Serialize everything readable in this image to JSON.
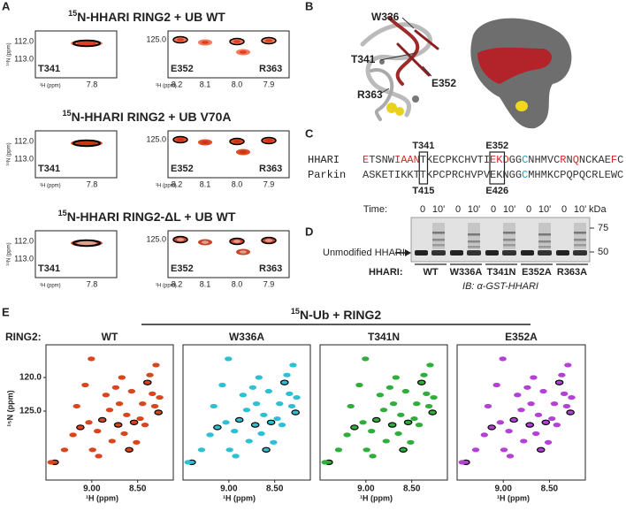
{
  "panel_a": {
    "label": "A",
    "rows": [
      {
        "title_sup": "15",
        "title": "N-HHARI RING2 + UB WT",
        "left": {
          "yticks": [
            "112.0",
            "113.0"
          ],
          "ylabel": "¹⁵N (ppm)",
          "xticks": [
            "7.8"
          ],
          "xlabel": "¹H (ppm)",
          "residues": [
            "T341"
          ]
        },
        "right": {
          "yticks": [
            "125.0"
          ],
          "xticks": [
            "8.2",
            "8.1",
            "8.0",
            "7.9"
          ],
          "xlabel": "¹H (ppm)",
          "residues": [
            "E352",
            "R363"
          ]
        }
      },
      {
        "title_sup": "15",
        "title": "N-HHARI RING2 + UB V70A",
        "left": {
          "yticks": [
            "112.0",
            "113.0"
          ],
          "ylabel": "¹⁵N (ppm)",
          "xticks": [
            "7.8"
          ],
          "xlabel": "¹H (ppm)",
          "residues": [
            "T341"
          ]
        },
        "right": {
          "yticks": [
            "125.0"
          ],
          "xticks": [
            "8.2",
            "8.1",
            "8.0",
            "7.9"
          ],
          "xlabel": "¹H (ppm)",
          "residues": [
            "E352",
            "R363"
          ]
        }
      },
      {
        "title_sup": "15",
        "title": "N-HHARI RING2-ΔL + UB WT",
        "left": {
          "yticks": [
            "112.0",
            "113.0"
          ],
          "ylabel": "¹⁵N (ppm)",
          "xticks": [
            "7.8"
          ],
          "xlabel": "¹H (ppm)",
          "residues": [
            "T341"
          ]
        },
        "right": {
          "yticks": [
            "125.0"
          ],
          "xticks": [
            "8.2",
            "8.1",
            "8.0",
            "7.9"
          ],
          "xlabel": "¹H (ppm)",
          "residues": [
            "E352",
            "R363"
          ]
        }
      }
    ]
  },
  "panel_b": {
    "label": "B",
    "residues": [
      "W336",
      "T341",
      "E352",
      "R363"
    ]
  },
  "panel_c": {
    "label": "C",
    "rows": [
      {
        "name": "HHARI",
        "segments": [
          {
            "text": "E",
            "color": "#d62728"
          },
          {
            "text": "TSNW",
            "color": "#333333"
          },
          {
            "text": "IAAN",
            "color": "#d62728"
          },
          {
            "text": "TKECPKCHVTI",
            "color": "#333333"
          },
          {
            "text": "EKD",
            "color": "#d62728"
          },
          {
            "text": "GG",
            "color": "#333333"
          },
          {
            "text": "C",
            "color": "#1f9fd6"
          },
          {
            "text": "NHMVC",
            "color": "#333333"
          },
          {
            "text": "R",
            "color": "#d62728"
          },
          {
            "text": "N",
            "color": "#333333"
          },
          {
            "text": "Q",
            "color": "#d62728"
          },
          {
            "text": "NCKAE",
            "color": "#333333"
          },
          {
            "text": "F",
            "color": "#d62728"
          },
          {
            "text": "C",
            "color": "#333333"
          }
        ]
      },
      {
        "name": "Parkin",
        "segments": [
          {
            "text": "ASKETIKKTTKPCPRCHVPVEKNGG",
            "color": "#333333"
          },
          {
            "text": "C",
            "color": "#1f9fd6"
          },
          {
            "text": "MHMKCPQPQCRLEWC",
            "color": "#333333"
          }
        ]
      }
    ],
    "top_labels": [
      "T341",
      "E352"
    ],
    "bottom_labels": [
      "T415",
      "E426"
    ]
  },
  "panel_d": {
    "label": "D",
    "time_label": "Time:",
    "times": [
      "0",
      "10'",
      "0",
      "10'",
      "0",
      "10'",
      "0",
      "10'",
      "0",
      "10'"
    ],
    "kda_label": "kDa",
    "markers": [
      "75",
      "50"
    ],
    "band_label": "Unmodified HHARI",
    "hhari_label": "HHARI:",
    "lanes": [
      "WT",
      "W336A",
      "T341N",
      "E352A",
      "R363A"
    ],
    "antibody": "IB: α-GST-HHARI"
  },
  "panel_e": {
    "label": "E",
    "title_sup": "15",
    "title": "N-Ub + RING2",
    "ring2_label": "RING2:",
    "plots": [
      {
        "name": "WT",
        "color": "#d9461e"
      },
      {
        "name": "W336A",
        "color": "#2cc0d2"
      },
      {
        "name": "T341N",
        "color": "#2fae3c"
      },
      {
        "name": "E352A",
        "color": "#b440d6"
      }
    ],
    "yticks": [
      "120.0",
      "125.0"
    ],
    "ylabel": "¹⁵N (ppm)",
    "xticks": [
      "9.00",
      "8.50"
    ],
    "xlabel": "¹H (ppm)"
  }
}
